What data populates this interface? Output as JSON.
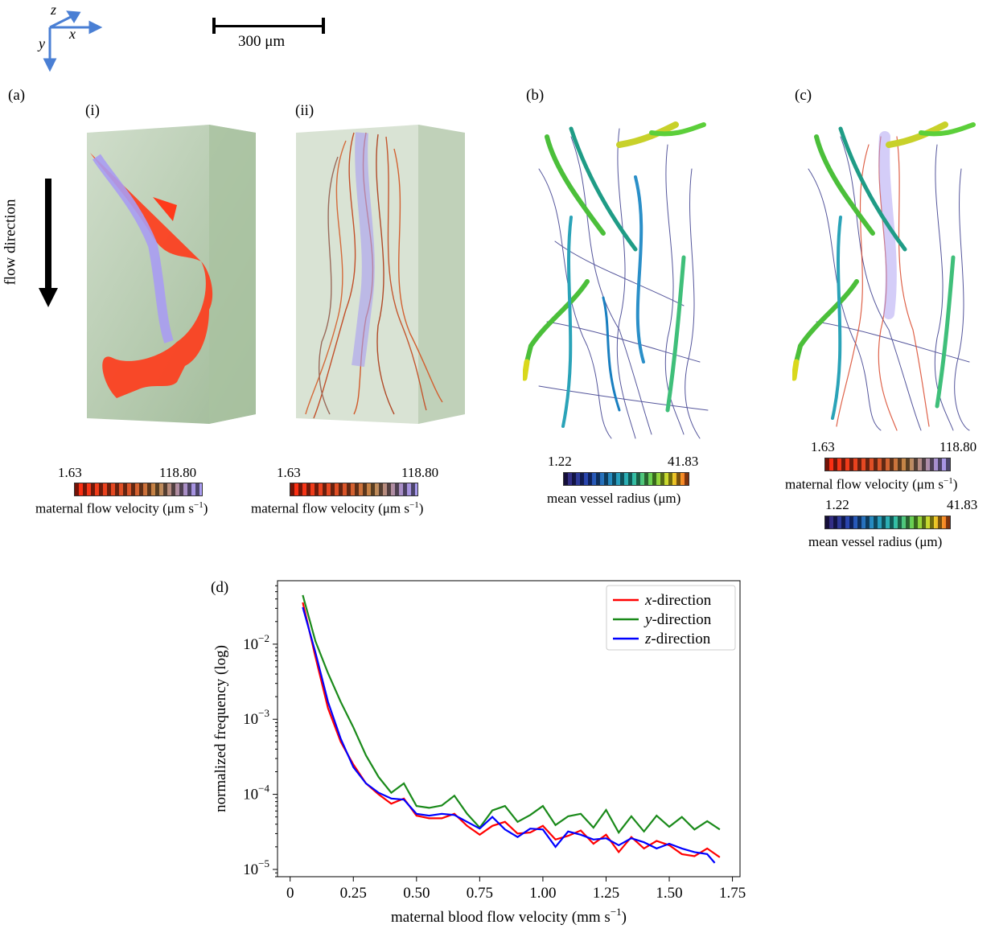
{
  "axes_indicator": {
    "z": "z",
    "x": "x",
    "y": "y",
    "color": "#4a7fd4"
  },
  "scale_bar": {
    "label": "300 μm"
  },
  "flow": {
    "label": "flow direction"
  },
  "panels": {
    "a": "(a)",
    "a_i": "(i)",
    "a_ii": "(ii)",
    "b": "(b)",
    "c": "(c)",
    "d": "(d)"
  },
  "colorbars": {
    "velocity": {
      "min": "1.63",
      "max": "118.80",
      "title": "maternal flow velocity (μm s",
      "exp": "−1",
      "close": ")"
    },
    "radius": {
      "min": "1.22",
      "max": "41.83",
      "title": "mean vessel radius (μm)"
    }
  },
  "chart_data": {
    "type": "line",
    "title": "(d)",
    "xlabel": "maternal blood flow velocity (mm s",
    "xlabel_exp": "−1",
    "xlabel_close": ")",
    "ylabel": "normalized frequency (log)",
    "xlim": [
      -0.05,
      1.78
    ],
    "ylim": [
      8e-06,
      0.07
    ],
    "yscale": "log",
    "x_ticks": [
      "0",
      "0.25",
      "0.50",
      "0.75",
      "1.00",
      "1.25",
      "1.50",
      "1.75"
    ],
    "x_tick_values": [
      0,
      0.25,
      0.5,
      0.75,
      1.0,
      1.25,
      1.5,
      1.75
    ],
    "y_ticks": [
      {
        "base": "10",
        "exp": "−5",
        "value": 1e-05
      },
      {
        "base": "10",
        "exp": "−4",
        "value": 0.0001
      },
      {
        "base": "10",
        "exp": "−3",
        "value": 0.001
      },
      {
        "base": "10",
        "exp": "−2",
        "value": 0.01
      }
    ],
    "legend_position": "top-right",
    "series": [
      {
        "name": "x-direction",
        "italic": "x",
        "rest": "-direction",
        "color": "#ff0000",
        "x": [
          0.05,
          0.1,
          0.15,
          0.2,
          0.25,
          0.3,
          0.35,
          0.4,
          0.45,
          0.5,
          0.55,
          0.6,
          0.65,
          0.7,
          0.75,
          0.8,
          0.85,
          0.9,
          0.95,
          1.0,
          1.05,
          1.1,
          1.15,
          1.2,
          1.25,
          1.3,
          1.35,
          1.4,
          1.45,
          1.5,
          1.55,
          1.6,
          1.65,
          1.7
        ],
        "y": [
          0.036,
          0.0068,
          0.0014,
          0.0005,
          0.00025,
          0.00014,
          0.0001,
          7.5e-05,
          8.8e-05,
          5.2e-05,
          4.8e-05,
          4.8e-05,
          5.5e-05,
          3.8e-05,
          2.9e-05,
          3.8e-05,
          4.3e-05,
          3e-05,
          3.1e-05,
          3.8e-05,
          2.5e-05,
          2.8e-05,
          3.3e-05,
          2.2e-05,
          2.9e-05,
          1.7e-05,
          2.7e-05,
          1.9e-05,
          2.4e-05,
          2.1e-05,
          1.6e-05,
          1.5e-05,
          1.9e-05,
          1.45e-05
        ]
      },
      {
        "name": "y-direction",
        "italic": "y",
        "rest": "-direction",
        "color": "#1a8a1a",
        "x": [
          0.05,
          0.1,
          0.15,
          0.2,
          0.25,
          0.3,
          0.35,
          0.4,
          0.45,
          0.5,
          0.55,
          0.6,
          0.65,
          0.7,
          0.75,
          0.8,
          0.85,
          0.9,
          0.95,
          1.0,
          1.05,
          1.1,
          1.15,
          1.2,
          1.25,
          1.3,
          1.35,
          1.4,
          1.45,
          1.5,
          1.55,
          1.6,
          1.65,
          1.7
        ],
        "y": [
          0.045,
          0.011,
          0.0041,
          0.0017,
          0.00078,
          0.00033,
          0.00017,
          0.000105,
          0.00014,
          7e-05,
          6.6e-05,
          7.1e-05,
          9.6e-05,
          5.5e-05,
          3.6e-05,
          6.1e-05,
          7e-05,
          4.3e-05,
          5.3e-05,
          7e-05,
          3.9e-05,
          5.1e-05,
          5.5e-05,
          3.6e-05,
          6.2e-05,
          3.1e-05,
          5.1e-05,
          3.2e-05,
          5.2e-05,
          3.7e-05,
          5e-05,
          3.4e-05,
          4.4e-05,
          3.4e-05
        ]
      },
      {
        "name": "z-direction",
        "italic": "z",
        "rest": "-direction",
        "color": "#0000ff",
        "x": [
          0.05,
          0.1,
          0.15,
          0.2,
          0.25,
          0.3,
          0.35,
          0.4,
          0.45,
          0.5,
          0.55,
          0.6,
          0.65,
          0.7,
          0.75,
          0.8,
          0.85,
          0.9,
          0.95,
          1.0,
          1.05,
          1.1,
          1.15,
          1.2,
          1.25,
          1.3,
          1.35,
          1.4,
          1.45,
          1.5,
          1.55,
          1.6,
          1.65,
          1.68
        ],
        "y": [
          0.031,
          0.0078,
          0.0017,
          0.00055,
          0.00023,
          0.00014,
          0.000105,
          8.8e-05,
          8.5e-05,
          5.5e-05,
          5.2e-05,
          5.5e-05,
          5.3e-05,
          4.3e-05,
          3.5e-05,
          5e-05,
          3.4e-05,
          2.7e-05,
          3.5e-05,
          3.4e-05,
          2e-05,
          3.2e-05,
          2.9e-05,
          2.5e-05,
          2.6e-05,
          2.1e-05,
          2.6e-05,
          2.3e-05,
          1.9e-05,
          2.2e-05,
          1.9e-05,
          1.7e-05,
          1.6e-05,
          1.22e-05
        ]
      }
    ]
  }
}
